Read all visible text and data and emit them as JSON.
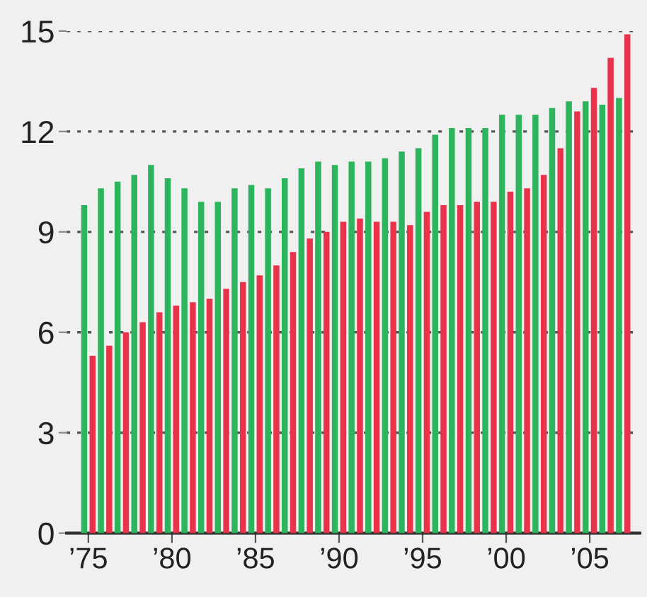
{
  "chart_data": {
    "type": "bar",
    "categories": [
      "’75",
      null,
      null,
      null,
      null,
      "’80",
      null,
      null,
      null,
      null,
      "’85",
      null,
      null,
      null,
      null,
      "’90",
      null,
      null,
      null,
      null,
      "’95",
      null,
      null,
      null,
      null,
      "’00",
      null,
      null,
      null,
      null,
      "’05",
      null,
      null
    ],
    "series": [
      {
        "color": "#2db55d",
        "values": [
          9.8,
          10.3,
          10.5,
          10.7,
          11.0,
          10.6,
          10.3,
          9.9,
          9.9,
          10.3,
          10.4,
          10.3,
          10.6,
          10.9,
          11.1,
          11.0,
          11.1,
          11.1,
          11.2,
          11.4,
          11.5,
          11.9,
          12.1,
          12.1,
          12.1,
          12.5,
          12.5,
          12.5,
          12.7,
          12.9,
          12.9,
          12.8,
          13.0
        ]
      },
      {
        "color": "#e8334a",
        "values": [
          5.3,
          5.6,
          6.0,
          6.3,
          6.6,
          6.8,
          6.9,
          7.0,
          7.3,
          7.5,
          7.7,
          8.0,
          8.4,
          8.8,
          9.0,
          9.3,
          9.4,
          9.3,
          9.3,
          9.2,
          9.6,
          9.8,
          9.8,
          9.9,
          9.9,
          10.2,
          10.3,
          10.7,
          11.5,
          12.6,
          13.3,
          14.2,
          14.9
        ]
      }
    ],
    "ylim": [
      0,
      15
    ],
    "yticks": [
      0,
      3,
      6,
      9,
      12,
      15
    ],
    "grid": "y",
    "legend": false
  }
}
